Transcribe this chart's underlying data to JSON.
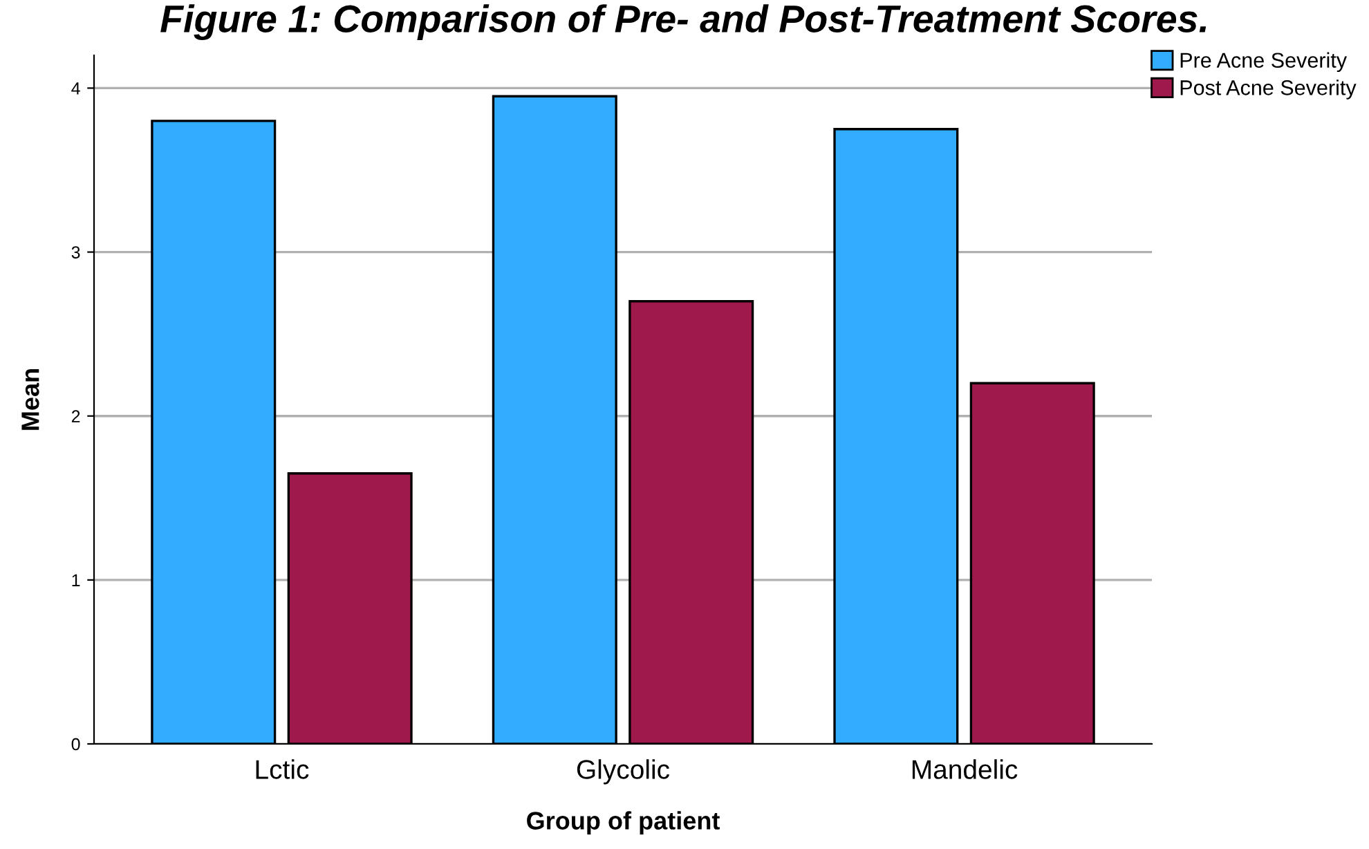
{
  "chart_data": {
    "type": "bar",
    "title": "Figure 1: Comparison of Pre- and Post-Treatment Scores.",
    "xlabel": "Group of patient",
    "ylabel": "Mean",
    "categories": [
      "Lctic",
      "Glycolic",
      "Mandelic"
    ],
    "series": [
      {
        "name": "Pre Acne Severity",
        "color": "#31acff",
        "values": [
          3.8,
          3.95,
          3.75
        ]
      },
      {
        "name": "Post Acne Severity",
        "color": "#a0194d",
        "values": [
          1.65,
          2.7,
          2.2
        ]
      }
    ],
    "ylim": [
      0,
      4.2
    ],
    "yticks": [
      0,
      1,
      2,
      3,
      4
    ],
    "grid": "y",
    "legend": "top right"
  }
}
